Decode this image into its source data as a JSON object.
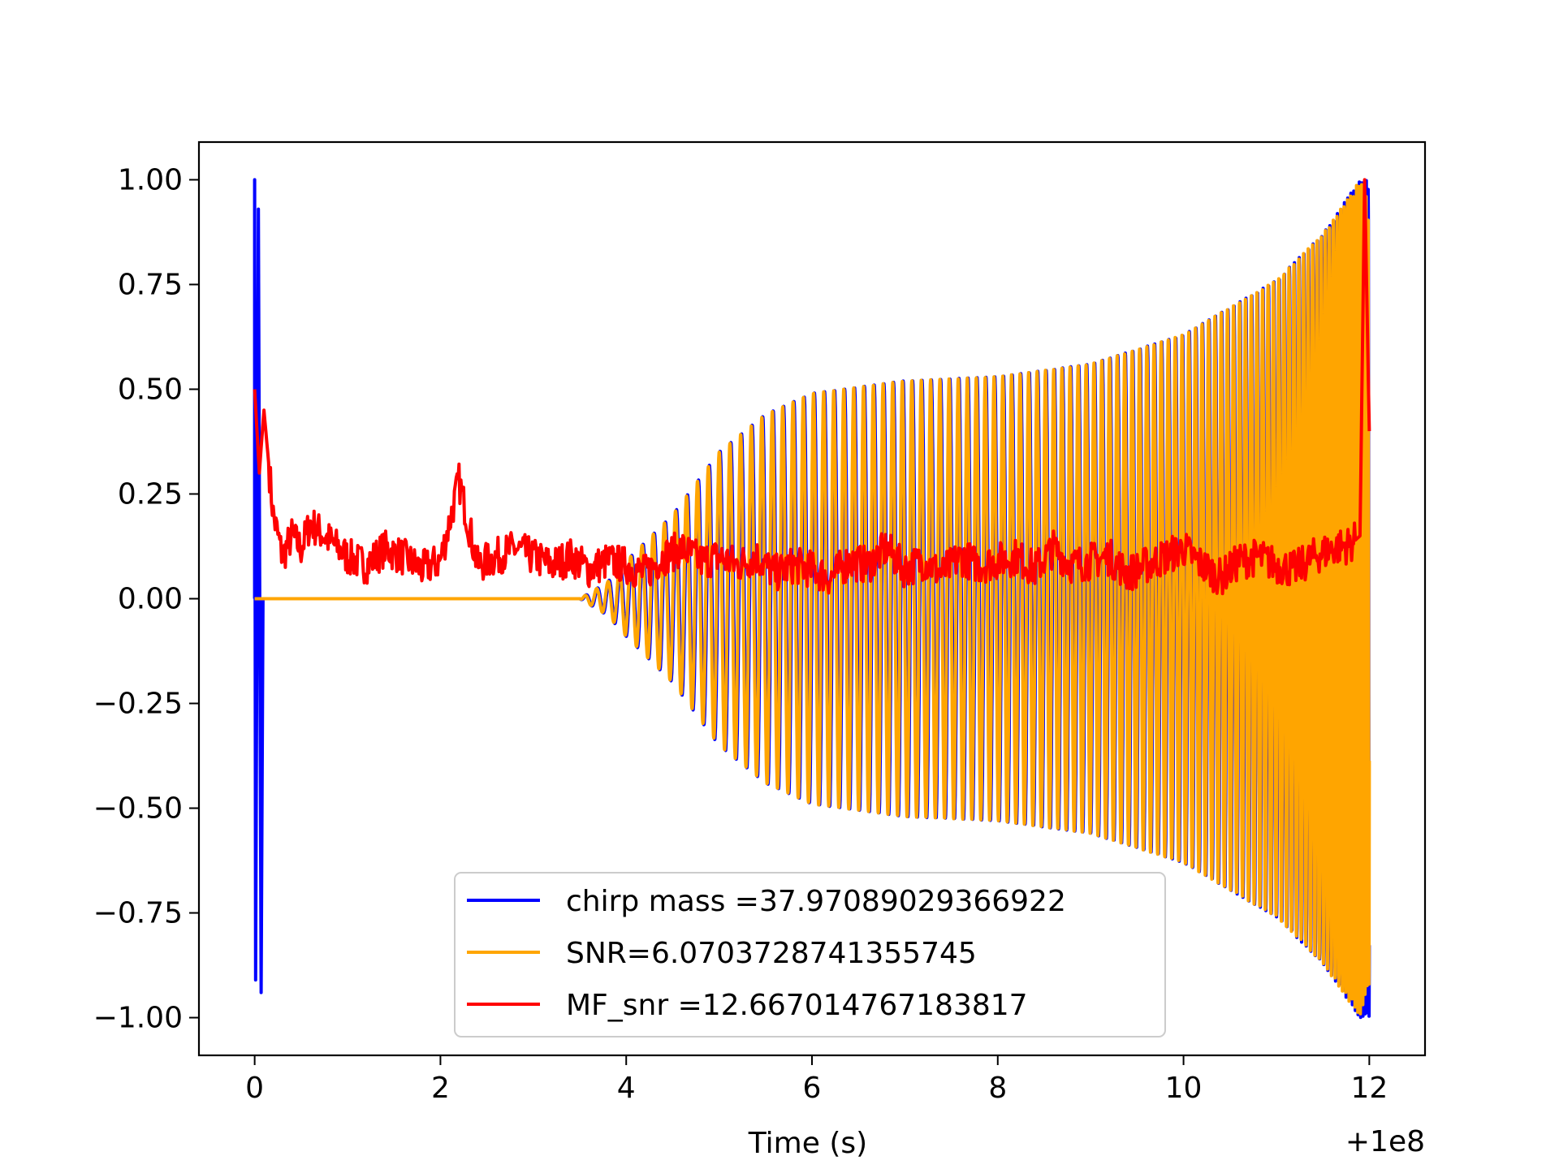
{
  "chart_data": {
    "type": "line",
    "title": "",
    "xlabel": "Time (s)",
    "ylabel": "",
    "x_offset_label": "+1e8",
    "xlim": [
      -0.6,
      12.6
    ],
    "ylim": [
      -1.09,
      1.09
    ],
    "x_ticks": [
      0,
      2,
      4,
      6,
      8,
      10,
      12
    ],
    "x_tick_labels": [
      "0",
      "2",
      "4",
      "6",
      "8",
      "10",
      "12"
    ],
    "y_ticks": [
      1.0,
      0.75,
      0.5,
      0.25,
      0.0,
      -0.25,
      -0.5,
      -0.75,
      -1.0
    ],
    "y_tick_labels": [
      "1.00",
      "0.75",
      "0.50",
      "0.25",
      "0.00",
      "−0.25",
      "−0.50",
      "−0.75",
      "−1.00"
    ],
    "grid": false,
    "legend_position": "lower-center",
    "series": [
      {
        "name": "chirp mass =37.97089029366922",
        "color": "#0000ff",
        "description_points": {
          "x": [
            0.0,
            0.01,
            0.03,
            0.05,
            0.07,
            3.5,
            3.8,
            4.0,
            4.5,
            5.0,
            5.5,
            6.0,
            7.0,
            8.0,
            9.0,
            10.0,
            11.0,
            11.5,
            11.9,
            12.0
          ],
          "envelope": [
            1.0,
            -0.91,
            0.93,
            -0.94,
            0.0,
            0.0,
            0.04,
            0.09,
            0.2,
            0.35,
            0.44,
            0.49,
            0.52,
            0.53,
            0.56,
            0.63,
            0.76,
            0.87,
            1.0,
            1.0
          ]
        }
      },
      {
        "name": "SNR=6.0703728741355745",
        "color": "#ffa500",
        "description_points": {
          "x": [
            0.0,
            3.5,
            3.8,
            4.0,
            4.5,
            5.0,
            5.5,
            6.0,
            7.0,
            8.0,
            9.0,
            10.0,
            11.0,
            11.5,
            11.9,
            12.0
          ],
          "envelope": [
            0.0,
            0.0,
            0.04,
            0.09,
            0.2,
            0.35,
            0.44,
            0.49,
            0.52,
            0.53,
            0.56,
            0.63,
            0.76,
            0.87,
            1.0,
            0.94
          ]
        }
      },
      {
        "name": "MF_snr =12.667014767183817",
        "color": "#ff0000",
        "x": [
          0.0,
          0.05,
          0.1,
          0.2,
          0.3,
          0.4,
          0.5,
          0.6,
          0.8,
          1.0,
          1.2,
          1.4,
          1.6,
          1.8,
          2.0,
          2.2,
          2.4,
          2.6,
          2.8,
          3.0,
          3.2,
          3.4,
          3.6,
          3.8,
          4.0,
          4.2,
          4.4,
          4.6,
          4.8,
          5.0,
          5.2,
          5.4,
          5.6,
          5.8,
          6.0,
          6.2,
          6.4,
          6.6,
          6.8,
          7.0,
          7.2,
          7.4,
          7.6,
          7.8,
          8.0,
          8.2,
          8.4,
          8.6,
          8.8,
          9.0,
          9.2,
          9.4,
          9.6,
          9.8,
          10.0,
          10.2,
          10.4,
          10.6,
          10.8,
          11.0,
          11.2,
          11.4,
          11.6,
          11.8,
          11.9,
          11.95,
          12.0
        ],
        "y": [
          0.5,
          0.3,
          0.45,
          0.2,
          0.1,
          0.15,
          0.12,
          0.18,
          0.14,
          0.1,
          0.08,
          0.12,
          0.1,
          0.07,
          0.09,
          0.28,
          0.08,
          0.1,
          0.12,
          0.1,
          0.08,
          0.1,
          0.07,
          0.09,
          0.08,
          0.06,
          0.1,
          0.12,
          0.09,
          0.1,
          0.08,
          0.1,
          0.06,
          0.08,
          0.07,
          0.05,
          0.09,
          0.08,
          0.12,
          0.07,
          0.09,
          0.06,
          0.1,
          0.08,
          0.09,
          0.1,
          0.07,
          0.12,
          0.08,
          0.09,
          0.1,
          0.06,
          0.08,
          0.1,
          0.12,
          0.08,
          0.05,
          0.09,
          0.1,
          0.08,
          0.07,
          0.1,
          0.12,
          0.13,
          0.15,
          1.0,
          0.4
        ]
      }
    ]
  }
}
